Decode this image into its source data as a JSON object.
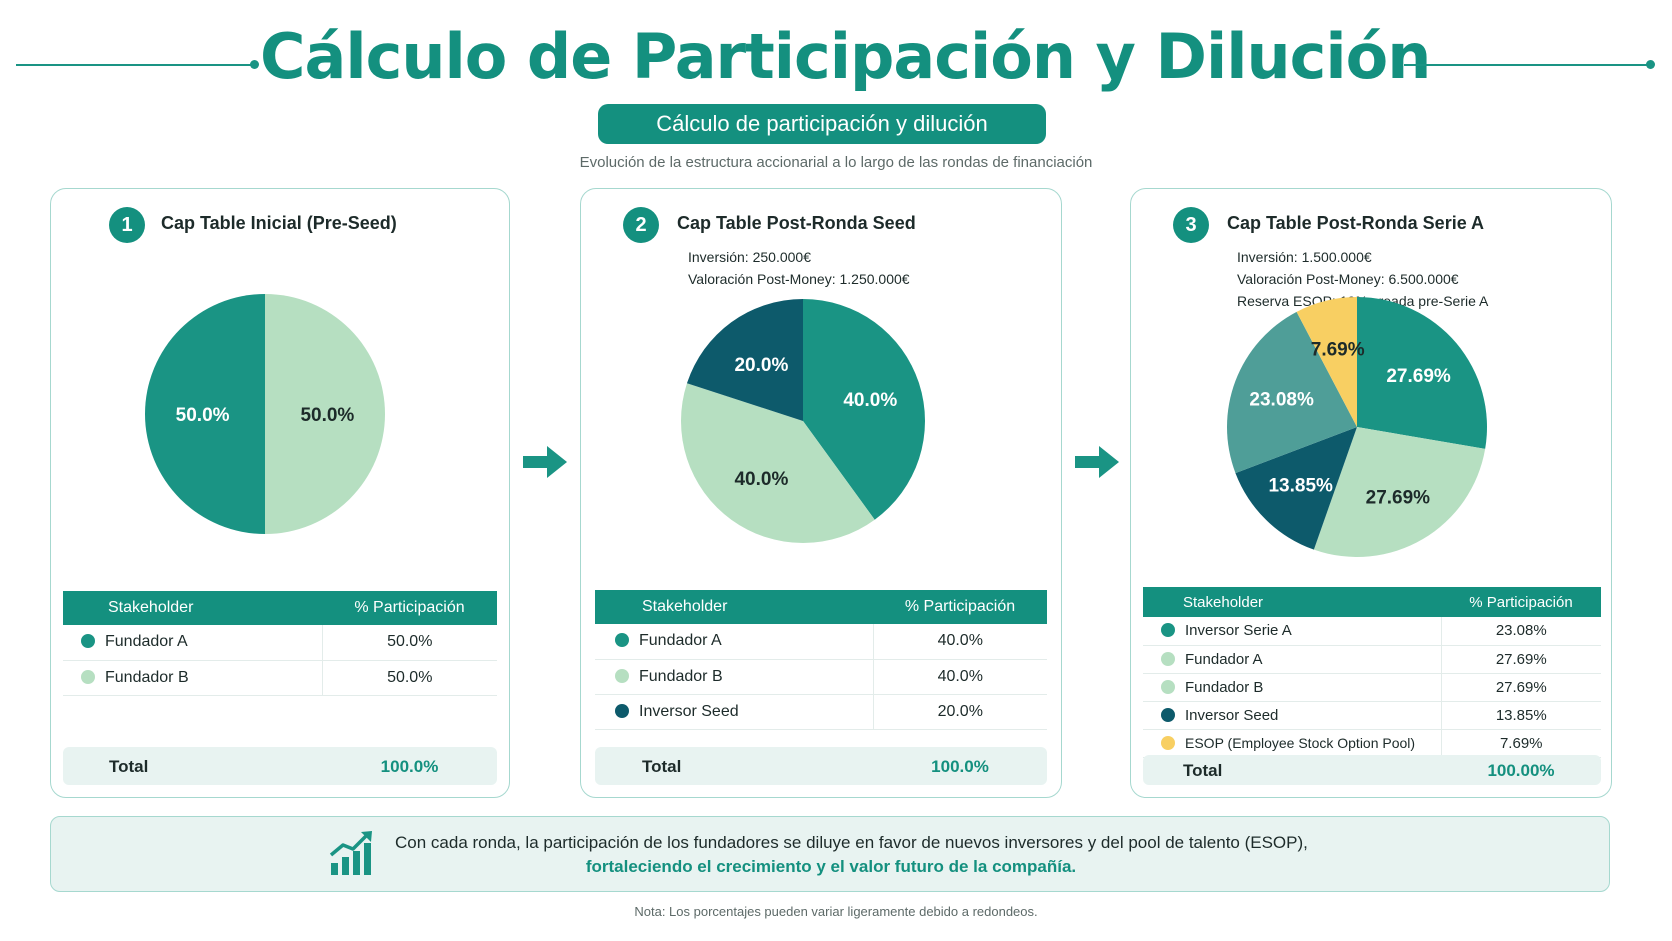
{
  "header": {
    "title": "Cálculo de Participación y Dilución",
    "subtitle": "Cálculo de participación y dilución",
    "description": "Evolución de la estructura accionarial a lo largo de las rondas de financiación"
  },
  "colors": {
    "Fundador A": "#1a9484",
    "Fundador B": "#b6dfc1",
    "Inversor Seed": "#0d5a6b",
    "Inversor Serie A": "#4f9e98",
    "ESOP (Employee Stock Option Pool)": "#f8cf62",
    "accent": "#14907f"
  },
  "cards": [
    {
      "number": "1",
      "title": "Cap Table Inicial (Pre-Seed)",
      "info": [],
      "table_headers": [
        "Stakeholder",
        "% Participación"
      ],
      "rows": [
        {
          "name": "Fundador A",
          "pct": "50.0%"
        },
        {
          "name": "Fundador B",
          "pct": "50.0%"
        }
      ],
      "total_label": "Total",
      "total_value": "100.0%"
    },
    {
      "number": "2",
      "title": "Cap Table Post-Ronda Seed",
      "info": [
        "Inversión: 250.000€",
        "Valoración Post-Money: 1.250.000€"
      ],
      "table_headers": [
        "Stakeholder",
        "% Participación"
      ],
      "rows": [
        {
          "name": "Fundador A",
          "pct": "40.0%"
        },
        {
          "name": "Fundador B",
          "pct": "40.0%"
        },
        {
          "name": "Inversor Seed",
          "pct": "20.0%"
        }
      ],
      "total_label": "Total",
      "total_value": "100.0%"
    },
    {
      "number": "3",
      "title": "Cap Table Post-Ronda Serie A",
      "info": [
        "Inversión: 1.500.000€",
        "Valoración Post-Money: 6.500.000€",
        "Reserva ESOP: 10% creada pre-Serie A"
      ],
      "table_headers": [
        "Stakeholder",
        "% Participación"
      ],
      "rows": [
        {
          "name": "Inversor Serie A",
          "pct": "23.08%"
        },
        {
          "name": "Fundador A",
          "pct": "27.69%"
        },
        {
          "name": "Fundador B",
          "pct": "27.69%"
        },
        {
          "name": "Inversor Seed",
          "pct": "13.85%"
        },
        {
          "name": "ESOP (Employee Stock Option Pool)",
          "pct": "7.69%"
        }
      ],
      "total_label": "Total",
      "total_value": "100.00%"
    }
  ],
  "chart_data": [
    {
      "type": "pie",
      "categories": [
        "Fundador A",
        "Fundador B"
      ],
      "values": [
        50.0,
        50.0
      ],
      "labels": [
        "50.0%",
        "50.0%"
      ]
    },
    {
      "type": "pie",
      "categories": [
        "Fundador A",
        "Fundador B",
        "Inversor Seed"
      ],
      "values": [
        40.0,
        40.0,
        20.0
      ],
      "labels": [
        "40.0%",
        "40.0%",
        "20.0%"
      ]
    },
    {
      "type": "pie",
      "categories": [
        "Fundador A",
        "Fundador B",
        "Inversor Seed",
        "Inversor Serie A",
        "ESOP (Employee Stock Option Pool)"
      ],
      "values": [
        27.69,
        27.69,
        13.85,
        23.08,
        7.69
      ],
      "labels": [
        "27.69%",
        "27.69%",
        "13.85%",
        "23.08%",
        "7.69%"
      ]
    }
  ],
  "footer": {
    "line1": "Con cada ronda, la participación de los fundadores se diluye en favor de nuevos inversores y del pool de talento (ESOP),",
    "line2": "fortaleciendo el crecimiento y el valor futuro de la compañía.",
    "icon": "growth-chart-icon"
  },
  "note": "Nota: Los porcentajes pueden variar ligeramente debido a redondeos."
}
